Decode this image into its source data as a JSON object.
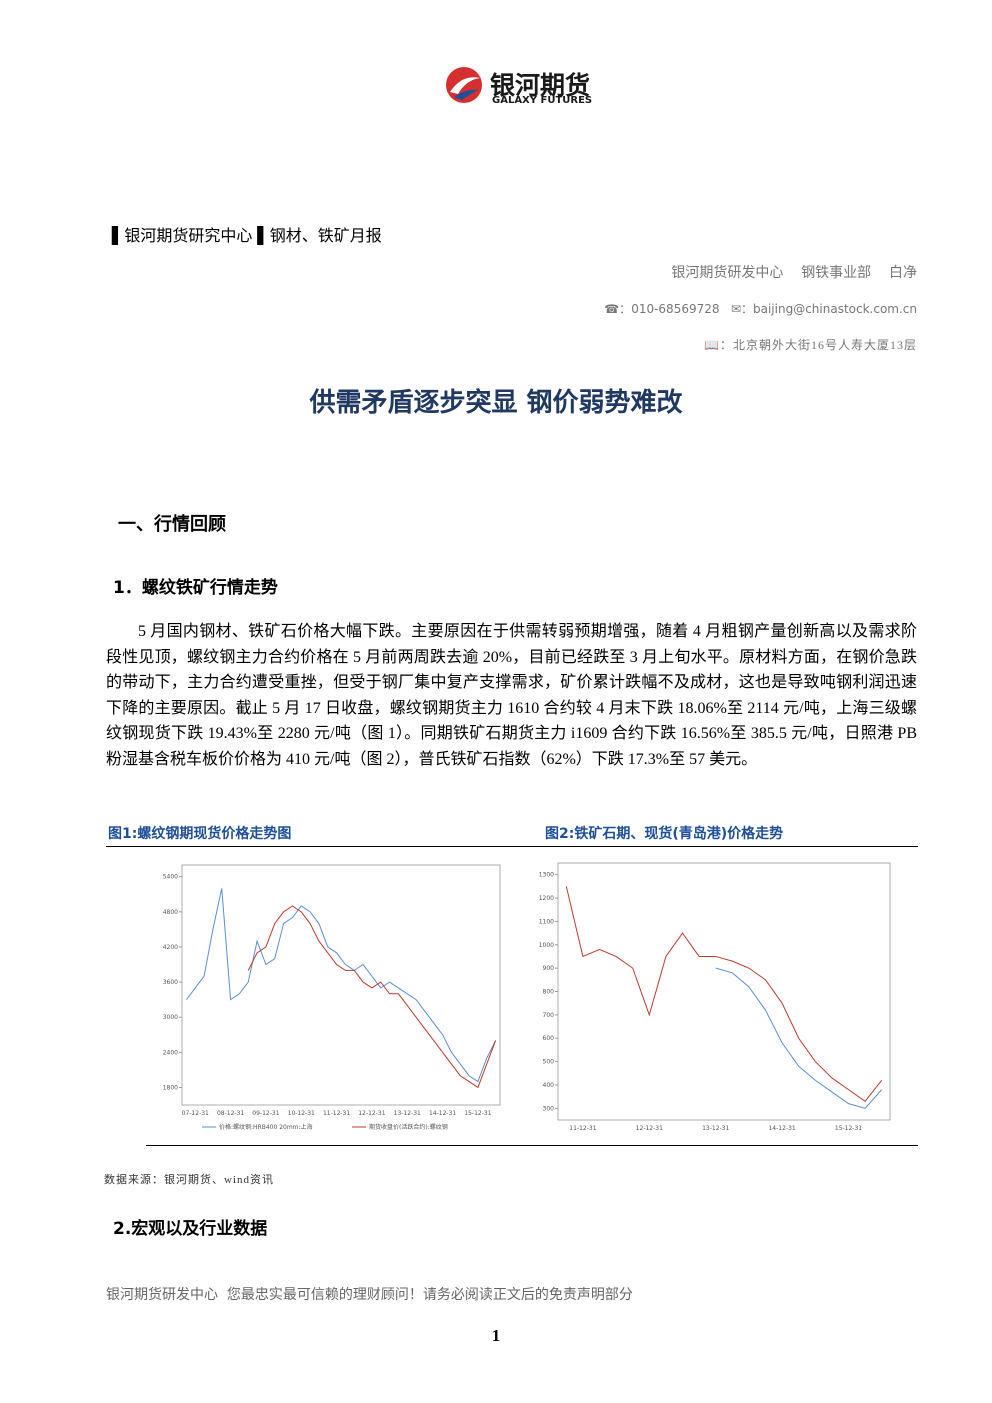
{
  "logo": {
    "name": "银河期货",
    "english": "GALAXY FUTURES"
  },
  "header": {
    "left": "银河期货研究中心",
    "right": "钢材、铁矿月报"
  },
  "author": {
    "org": "银河期货研发中心",
    "dept": "钢铁事业部",
    "name": "白净"
  },
  "contact": {
    "phone": "010-68569728",
    "email": "baijing@chinastock.com.cn",
    "address": "北京朝外大街16号人寿大厦13层"
  },
  "title": "供需矛盾逐步突显 钢价弱势难改",
  "section1": "一、行情回顾",
  "subsection1": "1．螺纹铁矿行情走势",
  "paragraph": "5 月国内钢材、铁矿石价格大幅下跌。主要原因在于供需转弱预期增强，随着 4 月粗钢产量创新高以及需求阶段性见顶，螺纹钢主力合约价格在 5 月前两周跌去逾 20%，目前已经跌至 3 月上旬水平。原材料方面，在钢价急跌的带动下，主力合约遭受重挫，但受于钢厂集中复产支撑需求，矿价累计跌幅不及成材，这也是导致吨钢利润迅速下降的主要原因。截止 5 月 17 日收盘，螺纹钢期货主力 1610 合约较 4 月末下跌 18.06%至 2114 元/吨，上海三级螺纹钢现货下跌 19.43%至 2280 元/吨（图 1）。同期铁矿石期货主力 i1609 合约下跌 16.56%至 385.5 元/吨，日照港 PB 粉湿基含税车板价价格为 410 元/吨（图 2），普氏铁矿石指数（62%）下跌 17.3%至 57 美元。",
  "chart_data": [
    {
      "type": "line",
      "title": "图1:螺纹钢期现货价格走势图",
      "categories": [
        null,
        "07-12-31",
        null,
        null,
        null,
        "08-12-31",
        null,
        null,
        null,
        "09-12-31",
        null,
        null,
        null,
        "10-12-31",
        null,
        null,
        null,
        "11-12-31",
        null,
        null,
        null,
        "12-12-31",
        null,
        null,
        null,
        "13-12-31",
        null,
        null,
        null,
        "14-12-31",
        null,
        null,
        null,
        "15-12-31",
        null,
        null
      ],
      "ylim": [
        1500,
        5600
      ],
      "yticks": [
        1800,
        2400,
        3000,
        3600,
        4200,
        4800,
        5400
      ],
      "series": [
        {
          "name": "价格:螺纹钢:HRB400 20mm:上海",
          "color": "#5b8ed6",
          "values": [
            3300,
            3500,
            3700,
            4500,
            5200,
            3300,
            3400,
            3600,
            4300,
            3900,
            4000,
            4600,
            4700,
            4900,
            4800,
            4600,
            4200,
            4100,
            3900,
            3800,
            3900,
            3700,
            3500,
            3600,
            3500,
            3400,
            3300,
            3100,
            2900,
            2700,
            2400,
            2200,
            2000,
            1900,
            2300,
            2600
          ]
        },
        {
          "name": "期货收盘价(活跃合约):螺纹钢",
          "color": "#c0392b",
          "values": [
            null,
            null,
            null,
            null,
            null,
            null,
            null,
            3800,
            4100,
            4200,
            4600,
            4800,
            4900,
            4800,
            4600,
            4300,
            4100,
            3900,
            3800,
            3800,
            3600,
            3500,
            3600,
            3400,
            3400,
            3200,
            3000,
            2800,
            2600,
            2400,
            2200,
            2000,
            1900,
            1800,
            2200,
            2600
          ]
        }
      ]
    },
    {
      "type": "line",
      "title": "图2:铁矿石期、现货(青岛港)价格走势",
      "categories": [
        null,
        "11-12-31",
        null,
        null,
        null,
        "12-12-31",
        null,
        null,
        null,
        "13-12-31",
        null,
        null,
        null,
        "14-12-31",
        null,
        null,
        null,
        "15-12-31",
        null,
        null
      ],
      "ylim": [
        250,
        1350
      ],
      "yticks": [
        300,
        400,
        500,
        600,
        700,
        800,
        900,
        1000,
        1100,
        1200,
        1300
      ],
      "series": [
        {
          "color": "#c0392b",
          "values": [
            1250,
            950,
            980,
            950,
            900,
            700,
            950,
            1050,
            950,
            950,
            930,
            900,
            850,
            750,
            600,
            500,
            430,
            380,
            330,
            420
          ]
        },
        {
          "color": "#5b8ed6",
          "values": [
            null,
            null,
            null,
            null,
            null,
            null,
            null,
            null,
            null,
            900,
            880,
            820,
            720,
            580,
            480,
            420,
            370,
            320,
            300,
            380
          ]
        }
      ]
    }
  ],
  "source": "数据来源：银河期货、wind资讯",
  "subsection2": "2.宏观以及行业数据",
  "footer": "银河期货研发中心  您最忠实最可信赖的理财顾问！请务必阅读正文后的免责声明部分",
  "page_number": "1"
}
